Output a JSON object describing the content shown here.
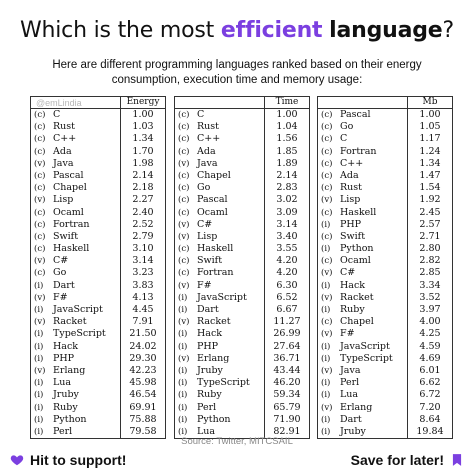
{
  "title": {
    "pre": "Which is the most ",
    "highlight": "efficient",
    "mid": " ",
    "strong": "language",
    "post": "?"
  },
  "subtitle": "Here are different programming languages ranked based on their energy consumption, execution time and memory usage:",
  "watermark": "@emLindia",
  "accent_color": "#7b3fe0",
  "tables": [
    {
      "header": "Energy",
      "rows": [
        {
          "mode": "(c)",
          "lang": "C",
          "value": "1.00"
        },
        {
          "mode": "(c)",
          "lang": "Rust",
          "value": "1.03"
        },
        {
          "mode": "(c)",
          "lang": "C++",
          "value": "1.34"
        },
        {
          "mode": "(c)",
          "lang": "Ada",
          "value": "1.70"
        },
        {
          "mode": "(v)",
          "lang": "Java",
          "value": "1.98"
        },
        {
          "mode": "(c)",
          "lang": "Pascal",
          "value": "2.14"
        },
        {
          "mode": "(c)",
          "lang": "Chapel",
          "value": "2.18"
        },
        {
          "mode": "(v)",
          "lang": "Lisp",
          "value": "2.27"
        },
        {
          "mode": "(c)",
          "lang": "Ocaml",
          "value": "2.40"
        },
        {
          "mode": "(c)",
          "lang": "Fortran",
          "value": "2.52"
        },
        {
          "mode": "(c)",
          "lang": "Swift",
          "value": "2.79"
        },
        {
          "mode": "(c)",
          "lang": "Haskell",
          "value": "3.10"
        },
        {
          "mode": "(v)",
          "lang": "C#",
          "value": "3.14"
        },
        {
          "mode": "(c)",
          "lang": "Go",
          "value": "3.23"
        },
        {
          "mode": "(i)",
          "lang": "Dart",
          "value": "3.83"
        },
        {
          "mode": "(v)",
          "lang": "F#",
          "value": "4.13"
        },
        {
          "mode": "(i)",
          "lang": "JavaScript",
          "value": "4.45"
        },
        {
          "mode": "(v)",
          "lang": "Racket",
          "value": "7.91"
        },
        {
          "mode": "(i)",
          "lang": "TypeScript",
          "value": "21.50"
        },
        {
          "mode": "(i)",
          "lang": "Hack",
          "value": "24.02"
        },
        {
          "mode": "(i)",
          "lang": "PHP",
          "value": "29.30"
        },
        {
          "mode": "(v)",
          "lang": "Erlang",
          "value": "42.23"
        },
        {
          "mode": "(i)",
          "lang": "Lua",
          "value": "45.98"
        },
        {
          "mode": "(i)",
          "lang": "Jruby",
          "value": "46.54"
        },
        {
          "mode": "(i)",
          "lang": "Ruby",
          "value": "69.91"
        },
        {
          "mode": "(i)",
          "lang": "Python",
          "value": "75.88"
        },
        {
          "mode": "(i)",
          "lang": "Perl",
          "value": "79.58"
        }
      ]
    },
    {
      "header": "Time",
      "rows": [
        {
          "mode": "(c)",
          "lang": "C",
          "value": "1.00"
        },
        {
          "mode": "(c)",
          "lang": "Rust",
          "value": "1.04"
        },
        {
          "mode": "(c)",
          "lang": "C++",
          "value": "1.56"
        },
        {
          "mode": "(c)",
          "lang": "Ada",
          "value": "1.85"
        },
        {
          "mode": "(v)",
          "lang": "Java",
          "value": "1.89"
        },
        {
          "mode": "(c)",
          "lang": "Chapel",
          "value": "2.14"
        },
        {
          "mode": "(c)",
          "lang": "Go",
          "value": "2.83"
        },
        {
          "mode": "(c)",
          "lang": "Pascal",
          "value": "3.02"
        },
        {
          "mode": "(c)",
          "lang": "Ocaml",
          "value": "3.09"
        },
        {
          "mode": "(v)",
          "lang": "C#",
          "value": "3.14"
        },
        {
          "mode": "(v)",
          "lang": "Lisp",
          "value": "3.40"
        },
        {
          "mode": "(c)",
          "lang": "Haskell",
          "value": "3.55"
        },
        {
          "mode": "(c)",
          "lang": "Swift",
          "value": "4.20"
        },
        {
          "mode": "(c)",
          "lang": "Fortran",
          "value": "4.20"
        },
        {
          "mode": "(v)",
          "lang": "F#",
          "value": "6.30"
        },
        {
          "mode": "(i)",
          "lang": "JavaScript",
          "value": "6.52"
        },
        {
          "mode": "(i)",
          "lang": "Dart",
          "value": "6.67"
        },
        {
          "mode": "(v)",
          "lang": "Racket",
          "value": "11.27"
        },
        {
          "mode": "(i)",
          "lang": "Hack",
          "value": "26.99"
        },
        {
          "mode": "(i)",
          "lang": "PHP",
          "value": "27.64"
        },
        {
          "mode": "(v)",
          "lang": "Erlang",
          "value": "36.71"
        },
        {
          "mode": "(i)",
          "lang": "Jruby",
          "value": "43.44"
        },
        {
          "mode": "(i)",
          "lang": "TypeScript",
          "value": "46.20"
        },
        {
          "mode": "(i)",
          "lang": "Ruby",
          "value": "59.34"
        },
        {
          "mode": "(i)",
          "lang": "Perl",
          "value": "65.79"
        },
        {
          "mode": "(i)",
          "lang": "Python",
          "value": "71.90"
        },
        {
          "mode": "(i)",
          "lang": "Lua",
          "value": "82.91"
        }
      ]
    },
    {
      "header": "Mb",
      "rows": [
        {
          "mode": "(c)",
          "lang": "Pascal",
          "value": "1.00"
        },
        {
          "mode": "(c)",
          "lang": "Go",
          "value": "1.05"
        },
        {
          "mode": "(c)",
          "lang": "C",
          "value": "1.17"
        },
        {
          "mode": "(c)",
          "lang": "Fortran",
          "value": "1.24"
        },
        {
          "mode": "(c)",
          "lang": "C++",
          "value": "1.34"
        },
        {
          "mode": "(c)",
          "lang": "Ada",
          "value": "1.47"
        },
        {
          "mode": "(c)",
          "lang": "Rust",
          "value": "1.54"
        },
        {
          "mode": "(v)",
          "lang": "Lisp",
          "value": "1.92"
        },
        {
          "mode": "(c)",
          "lang": "Haskell",
          "value": "2.45"
        },
        {
          "mode": "(i)",
          "lang": "PHP",
          "value": "2.57"
        },
        {
          "mode": "(c)",
          "lang": "Swift",
          "value": "2.71"
        },
        {
          "mode": "(i)",
          "lang": "Python",
          "value": "2.80"
        },
        {
          "mode": "(c)",
          "lang": "Ocaml",
          "value": "2.82"
        },
        {
          "mode": "(v)",
          "lang": "C#",
          "value": "2.85"
        },
        {
          "mode": "(i)",
          "lang": "Hack",
          "value": "3.34"
        },
        {
          "mode": "(v)",
          "lang": "Racket",
          "value": "3.52"
        },
        {
          "mode": "(i)",
          "lang": "Ruby",
          "value": "3.97"
        },
        {
          "mode": "(c)",
          "lang": "Chapel",
          "value": "4.00"
        },
        {
          "mode": "(v)",
          "lang": "F#",
          "value": "4.25"
        },
        {
          "mode": "(i)",
          "lang": "JavaScript",
          "value": "4.59"
        },
        {
          "mode": "(i)",
          "lang": "TypeScript",
          "value": "4.69"
        },
        {
          "mode": "(v)",
          "lang": "Java",
          "value": "6.01"
        },
        {
          "mode": "(i)",
          "lang": "Perl",
          "value": "6.62"
        },
        {
          "mode": "(i)",
          "lang": "Lua",
          "value": "6.72"
        },
        {
          "mode": "(v)",
          "lang": "Erlang",
          "value": "7.20"
        },
        {
          "mode": "(i)",
          "lang": "Dart",
          "value": "8.64"
        },
        {
          "mode": "(i)",
          "lang": "Jruby",
          "value": "19.84"
        }
      ]
    }
  ],
  "source": "Source: Twitter, MITCSAIL",
  "footer": {
    "left_label": "Hit to support!",
    "left_icon": "heart-icon",
    "right_label": "Save for later!",
    "right_icon": "bookmark-icon"
  }
}
